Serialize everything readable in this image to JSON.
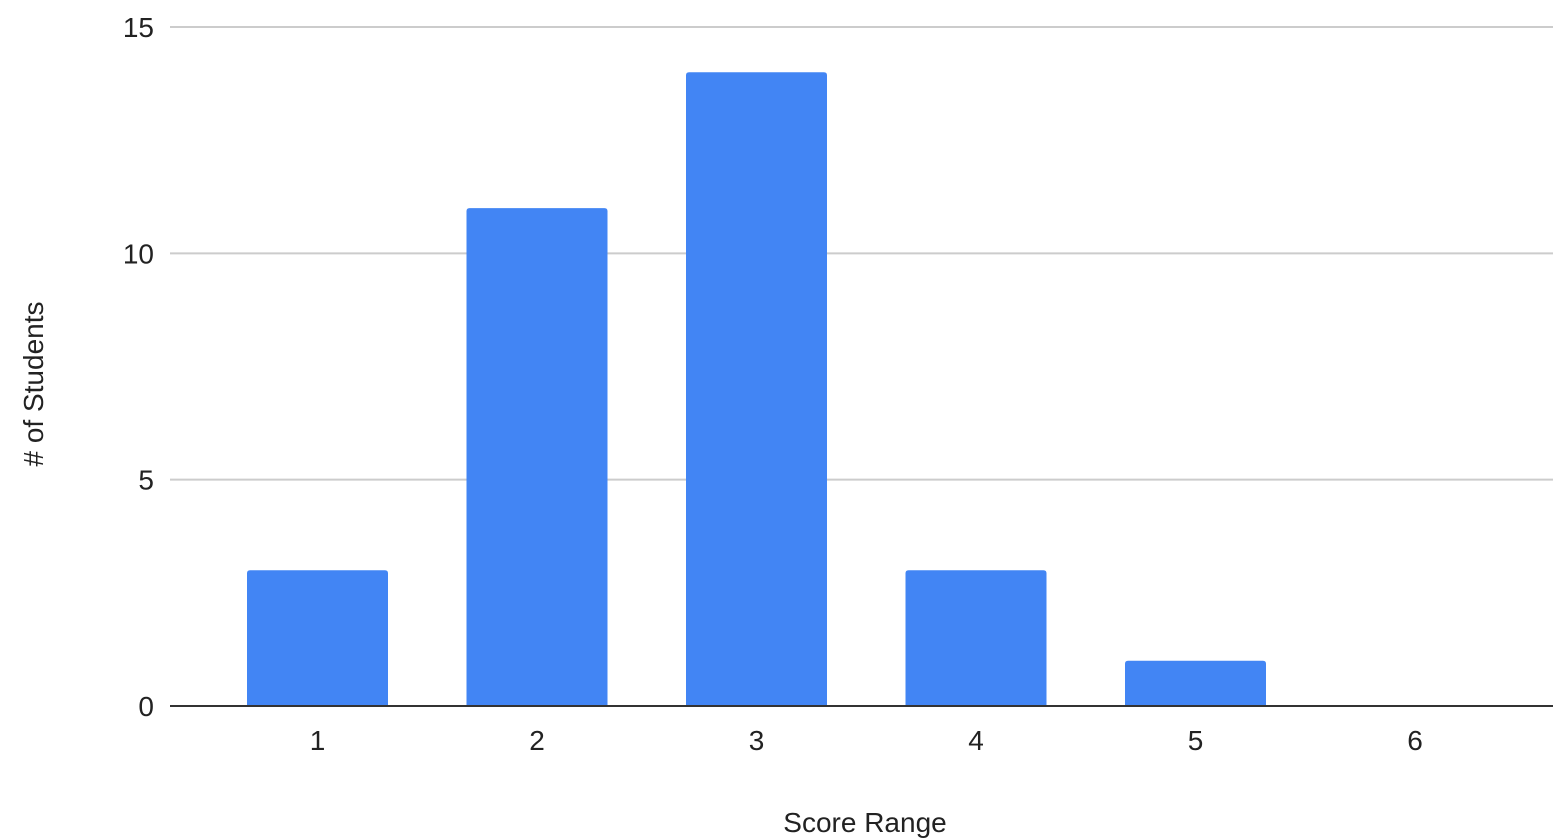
{
  "chart_data": {
    "type": "bar",
    "title": "",
    "xlabel": "Score Range",
    "ylabel": "# of Students",
    "categories": [
      "1",
      "2",
      "3",
      "4",
      "5",
      "6"
    ],
    "values": [
      3,
      11,
      14,
      3,
      1,
      0
    ],
    "ylim": [
      0,
      15
    ],
    "yticks": [
      0,
      5,
      10,
      15
    ],
    "grid": true,
    "legend": "none",
    "bar_color": "#4285F4",
    "gridline_color": "#CCCCCC",
    "baseline_color": "#333333"
  }
}
